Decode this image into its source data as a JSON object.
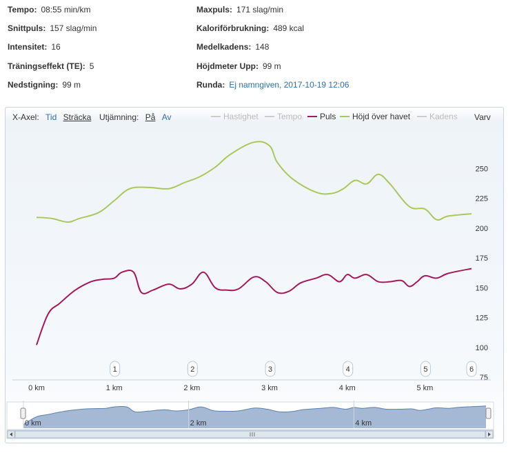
{
  "stats": {
    "left": [
      {
        "label": "Tempo:",
        "value": "08:55 min/km"
      },
      {
        "label": "Snittpuls:",
        "value": "157 slag/min"
      },
      {
        "label": "Intensitet:",
        "value": "16"
      },
      {
        "label_pre": "Träningseffekt (",
        "label_link": "TE",
        "label_post": "):",
        "value": "5"
      },
      {
        "label": "Nedstigning:",
        "value": "99 m"
      }
    ],
    "right": [
      {
        "label": "Maxpuls:",
        "value": "171 slag/min"
      },
      {
        "label": "Kaloriförbrukning:",
        "value": "489 kcal"
      },
      {
        "label": "Medelkadens:",
        "value": "148"
      },
      {
        "label": "Höjdmeter Upp:",
        "value": "99 m"
      },
      {
        "label": "Runda:",
        "value": "Ej namngiven, 2017-10-19 12:06"
      }
    ]
  },
  "controls": {
    "xaxis_label": "X-Axel:",
    "xaxis_time": "Tid",
    "xaxis_distance": "Sträcka",
    "smoothing_label": "Utjämning:",
    "smoothing_on": "På",
    "smoothing_off": "Av"
  },
  "legend": [
    {
      "name": "Hastighet",
      "color": "#cccccc",
      "text_color": "#bbbbbb"
    },
    {
      "name": "Tempo",
      "color": "#cccccc",
      "text_color": "#bbbbbb"
    },
    {
      "name": "Puls",
      "color": "#a3185a",
      "text_color": "#333333"
    },
    {
      "name": "Höjd över havet",
      "color": "#a8c85a",
      "text_color": "#333333"
    },
    {
      "name": "Kadens",
      "color": "#cccccc",
      "text_color": "#bbbbbb"
    }
  ],
  "laps_label": "Varv",
  "colors": {
    "puls": "#a3185a",
    "hojd": "#a8c85a",
    "navigator": "#5b80b0"
  },
  "chart_data": {
    "type": "line",
    "x_unit": "km",
    "xlim": [
      0,
      5.6
    ],
    "ylim": [
      75,
      275
    ],
    "x_ticks": [
      "0 km",
      "1 km",
      "2 km",
      "3 km",
      "4 km",
      "5 km"
    ],
    "y_ticks": [
      "75",
      "100",
      "125",
      "150",
      "175",
      "200",
      "225",
      "250"
    ],
    "lap_markers": [
      "1",
      "2",
      "3",
      "4",
      "5",
      "6"
    ],
    "series": [
      {
        "name": "Höjd över havet",
        "x": [
          0,
          0.2,
          0.4,
          0.55,
          0.8,
          1.0,
          1.2,
          1.45,
          1.7,
          1.9,
          2.1,
          2.3,
          2.5,
          2.8,
          3.0,
          3.1,
          3.3,
          3.6,
          3.8,
          3.95,
          4.1,
          4.25,
          4.4,
          4.55,
          4.8,
          5.0,
          5.15,
          5.3,
          5.6
        ],
        "values": [
          209,
          208,
          205,
          208,
          213,
          223,
          233,
          234,
          233,
          238,
          243,
          251,
          262,
          272,
          269,
          255,
          241,
          230,
          229,
          233,
          240,
          237,
          245,
          237,
          218,
          216,
          207,
          210,
          212
        ]
      },
      {
        "name": "Puls",
        "x": [
          0,
          0.15,
          0.3,
          0.5,
          0.7,
          0.85,
          1.0,
          1.1,
          1.25,
          1.35,
          1.5,
          1.7,
          1.85,
          2.0,
          2.15,
          2.3,
          2.45,
          2.6,
          2.8,
          2.95,
          3.1,
          3.25,
          3.4,
          3.6,
          3.75,
          3.9,
          4.0,
          4.1,
          4.25,
          4.4,
          4.55,
          4.7,
          4.8,
          4.9,
          5.0,
          5.15,
          5.3,
          5.6
        ],
        "values": [
          102,
          128,
          137,
          148,
          155,
          157,
          158,
          163,
          163,
          146,
          148,
          153,
          149,
          153,
          163,
          150,
          148,
          149,
          159,
          155,
          146,
          147,
          154,
          158,
          161,
          155,
          161,
          158,
          161,
          155,
          155,
          156,
          151,
          155,
          160,
          158,
          162,
          166
        ]
      }
    ],
    "grid": false,
    "legend_position": "top-right"
  }
}
